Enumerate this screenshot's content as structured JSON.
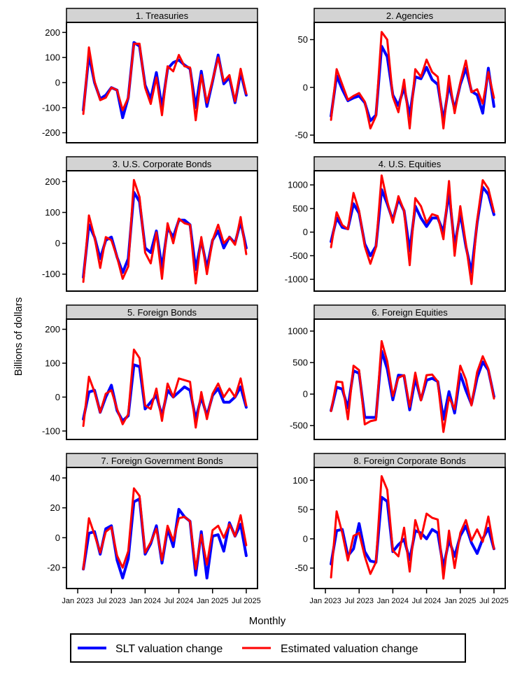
{
  "chart_data": {
    "type": "line",
    "layout": "2x4 panel grid (2 columns, 4 rows)",
    "ylabel": "Billions of dollars",
    "xlabel": "Monthly",
    "x": [
      "2023-02",
      "2023-03",
      "2023-04",
      "2023-05",
      "2023-06",
      "2023-07",
      "2023-08",
      "2023-09",
      "2023-10",
      "2023-11",
      "2023-12",
      "2024-01",
      "2024-02",
      "2024-03",
      "2024-04",
      "2024-05",
      "2024-06",
      "2024-07",
      "2024-08",
      "2024-09",
      "2024-10",
      "2024-11",
      "2024-12",
      "2025-01",
      "2025-02",
      "2025-03",
      "2025-04",
      "2025-05",
      "2025-06",
      "2025-07"
    ],
    "x_ticks": [
      "Jan 2023",
      "Jul 2023",
      "Jan 2024",
      "Jul 2024",
      "Jan 2025",
      "Jul 2025"
    ],
    "x_tick_months": [
      "2023-01",
      "2023-07",
      "2024-01",
      "2024-07",
      "2025-01",
      "2025-07"
    ],
    "xlim": [
      "2022-11",
      "2025-09"
    ],
    "grid": false,
    "legend": {
      "placement": "bottom",
      "entries": [
        {
          "name": "SLT valuation change",
          "color": "#0000ff"
        },
        {
          "name": "Estimated valuation change",
          "color": "#ff0000"
        }
      ]
    },
    "panels": [
      {
        "title": "1. Treasuries",
        "ylim": [
          -240,
          240
        ],
        "yticks": [
          -200,
          -100,
          0,
          100,
          200
        ],
        "series": [
          {
            "name": "SLT valuation change",
            "values": [
              -110,
              110,
              0,
              -65,
              -50,
              -20,
              -30,
              -140,
              -60,
              160,
              145,
              -10,
              -65,
              40,
              -100,
              55,
              80,
              90,
              70,
              55,
              -100,
              45,
              -95,
              5,
              110,
              -5,
              20,
              -80,
              40,
              -50
            ]
          },
          {
            "name": "Estimated valuation change",
            "values": [
              -125,
              140,
              5,
              -70,
              -60,
              -20,
              -30,
              -110,
              -60,
              155,
              155,
              -20,
              -85,
              20,
              -130,
              65,
              45,
              110,
              65,
              60,
              -150,
              30,
              -80,
              10,
              100,
              5,
              30,
              -75,
              55,
              -45
            ]
          }
        ]
      },
      {
        "title": "2. Agencies",
        "ylim": [
          -58,
          68
        ],
        "yticks": [
          -50,
          0,
          50
        ],
        "series": [
          {
            "name": "SLT valuation change",
            "values": [
              -30,
              12,
              -2,
              -14,
              -11,
              -9,
              -16,
              -35,
              -29,
              43,
              32,
              -8,
              -19,
              0,
              -30,
              11,
              9,
              21,
              8,
              3,
              -35,
              3,
              -23,
              3,
              20,
              -4,
              -8,
              -27,
              20,
              -20
            ]
          },
          {
            "name": "Estimated valuation change",
            "values": [
              -34,
              19,
              3,
              -13,
              -9,
              -6,
              -15,
              -43,
              -30,
              58,
              50,
              -10,
              -26,
              8,
              -43,
              19,
              11,
              29,
              16,
              11,
              -43,
              12,
              -27,
              5,
              28,
              -5,
              -2,
              -17,
              16,
              -11
            ]
          }
        ]
      },
      {
        "title": "3. U.S. Corporate Bonds",
        "ylim": [
          -155,
          235
        ],
        "yticks": [
          -100,
          0,
          100,
          200
        ],
        "series": [
          {
            "name": "SLT valuation change",
            "values": [
              -110,
              60,
              20,
              -50,
              10,
              20,
              -45,
              -95,
              -50,
              165,
              135,
              -15,
              -30,
              40,
              -80,
              50,
              20,
              75,
              75,
              60,
              -85,
              10,
              -80,
              10,
              40,
              -15,
              20,
              0,
              70,
              -15
            ]
          },
          {
            "name": "Estimated valuation change",
            "values": [
              -125,
              90,
              20,
              -80,
              20,
              10,
              -45,
              -115,
              -75,
              205,
              150,
              -30,
              -65,
              35,
              -115,
              65,
              0,
              80,
              65,
              60,
              -130,
              20,
              -100,
              10,
              60,
              0,
              20,
              -5,
              85,
              -35
            ]
          }
        ]
      },
      {
        "title": "4. U.S. Equities",
        "ylim": [
          -1250,
          1300
        ],
        "yticks": [
          -1000,
          -500,
          0,
          500,
          1000
        ],
        "series": [
          {
            "name": "SLT valuation change",
            "values": [
              -200,
              300,
              100,
              70,
              600,
              400,
              -250,
              -500,
              -300,
              900,
              600,
              250,
              700,
              450,
              -400,
              550,
              300,
              120,
              300,
              300,
              0,
              850,
              -300,
              400,
              -300,
              -850,
              200,
              950,
              800,
              370
            ]
          },
          {
            "name": "Estimated valuation change",
            "values": [
              -320,
              420,
              150,
              60,
              830,
              450,
              -300,
              -670,
              -320,
              1200,
              650,
              200,
              760,
              450,
              -700,
              720,
              550,
              200,
              380,
              340,
              -150,
              1080,
              -500,
              550,
              -250,
              -1100,
              250,
              1100,
              920,
              430
            ]
          }
        ]
      },
      {
        "title": "5. Foreign Bonds",
        "ylim": [
          -125,
          230
        ],
        "yticks": [
          -100,
          0,
          100,
          200
        ],
        "series": [
          {
            "name": "SLT valuation change",
            "values": [
              -65,
              15,
              20,
              -45,
              0,
              35,
              -40,
              -70,
              -55,
              95,
              90,
              -35,
              -15,
              5,
              -55,
              20,
              0,
              15,
              30,
              20,
              -65,
              0,
              -55,
              5,
              25,
              -15,
              -15,
              0,
              30,
              -30
            ]
          },
          {
            "name": "Estimated valuation change",
            "values": [
              -85,
              60,
              15,
              -45,
              10,
              20,
              -35,
              -80,
              -50,
              140,
              115,
              -25,
              -35,
              25,
              -70,
              40,
              0,
              55,
              50,
              45,
              -90,
              15,
              -65,
              10,
              40,
              0,
              25,
              0,
              55,
              -25
            ]
          }
        ]
      },
      {
        "title": "6. Foreign Equities",
        "ylim": [
          -720,
          1190
        ],
        "yticks": [
          -500,
          0,
          500,
          1000
        ],
        "series": [
          {
            "name": "SLT valuation change",
            "values": [
              -260,
              110,
              80,
              -220,
              370,
              330,
              -370,
              -370,
              -370,
              680,
              400,
              -90,
              300,
              290,
              -250,
              250,
              -90,
              220,
              250,
              200,
              -400,
              40,
              -300,
              320,
              60,
              -160,
              260,
              510,
              380,
              -40
            ]
          },
          {
            "name": "Estimated valuation change",
            "values": [
              -270,
              200,
              190,
              -400,
              450,
              380,
              -480,
              -430,
              -410,
              840,
              520,
              -30,
              260,
              300,
              -200,
              340,
              -100,
              300,
              310,
              200,
              -600,
              -50,
              -240,
              450,
              230,
              -180,
              350,
              600,
              400,
              -70
            ]
          }
        ]
      },
      {
        "title": "7. Foreign Government Bonds",
        "ylim": [
          -34,
          47
        ],
        "yticks": [
          -20,
          0,
          20,
          40
        ],
        "series": [
          {
            "name": "SLT valuation change",
            "values": [
              -21,
              3,
              4,
              -11,
              6,
              8,
              -15,
              -27,
              -14,
              24,
              26,
              -11,
              -4,
              8,
              -17,
              6,
              -6,
              19,
              14,
              11,
              -25,
              4,
              -27,
              1,
              2,
              -9,
              10,
              1,
              9,
              -12
            ]
          },
          {
            "name": "Estimated valuation change",
            "values": [
              -21,
              13,
              2,
              -10,
              4,
              7,
              -12,
              -20,
              -9,
              33,
              28,
              -10,
              -3,
              6,
              -15,
              8,
              -2,
              13,
              14,
              11,
              -21,
              2,
              -18,
              5,
              8,
              0,
              9,
              1,
              15,
              -5
            ]
          }
        ]
      },
      {
        "title": "8. Foreign Corporate Bonds",
        "ylim": [
          -85,
          122
        ],
        "yticks": [
          -50,
          0,
          50,
          100
        ],
        "series": [
          {
            "name": "SLT valuation change",
            "values": [
              -43,
              14,
              16,
              -29,
              -17,
              26,
              -22,
              -38,
              -40,
              71,
              64,
              -22,
              -10,
              -1,
              -36,
              14,
              10,
              0,
              16,
              10,
              -49,
              -2,
              -30,
              5,
              22,
              -7,
              -25,
              0,
              18,
              -17
            ]
          },
          {
            "name": "Estimated valuation change",
            "values": [
              -66,
              47,
              10,
              -37,
              5,
              10,
              -30,
              -60,
              -40,
              107,
              84,
              -20,
              -30,
              19,
              -56,
              32,
              0,
              43,
              36,
              33,
              -68,
              14,
              -50,
              10,
              32,
              -3,
              16,
              -5,
              38,
              -17
            ]
          }
        ]
      }
    ]
  }
}
